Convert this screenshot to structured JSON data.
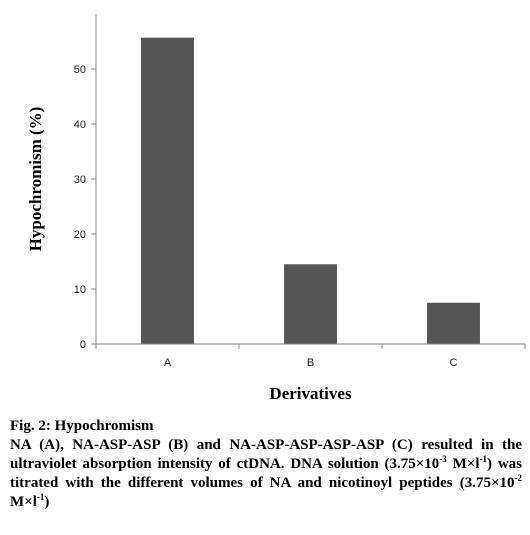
{
  "chart_data": {
    "type": "bar",
    "categories": [
      "A",
      "B",
      "C"
    ],
    "values": [
      55.7,
      14.5,
      7.5
    ],
    "title": "",
    "xlabel": "Derivatives",
    "ylabel": "Hypochromism (%)",
    "ylim": [
      0,
      60
    ],
    "yticks": [
      0,
      10,
      20,
      30,
      40,
      50
    ],
    "grid": false,
    "legend": "none",
    "bar_color": "#555555",
    "axis_color": "#888888"
  },
  "caption": {
    "title": "Fig. 2: Hypochromism",
    "body_1": "NA (A), NA-ASP-ASP (B) and NA-ASP-ASP-ASP-ASP (C) resulted in the ultraviolet absorption intensity of ctDNA. DNA solution (3.75×10",
    "exp_1": "-3",
    "body_2": " M×l",
    "exp_2": "-1",
    "body_3": ") was titrated with the different volumes of NA and nicotinoyl peptides (3.75×10",
    "exp_3": "-2",
    "body_4": " M×l",
    "exp_4": "-1",
    "body_5": ")"
  }
}
